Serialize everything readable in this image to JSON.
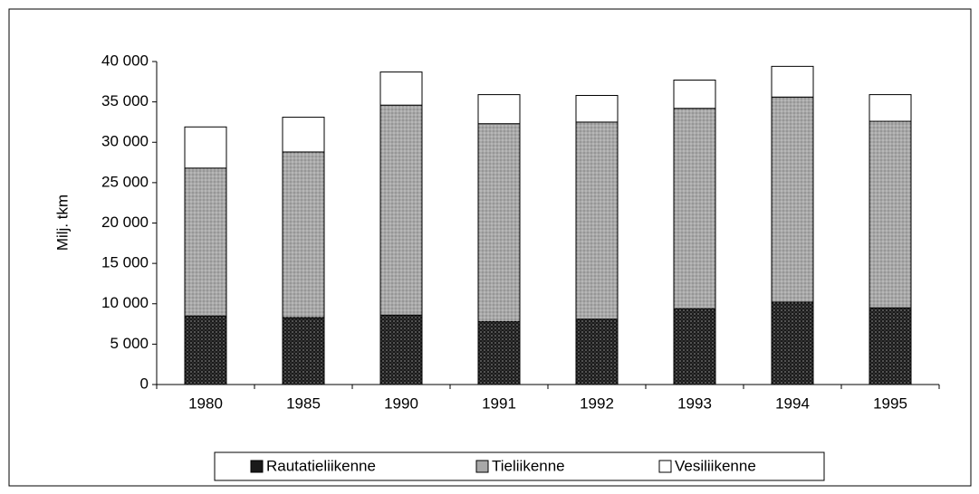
{
  "chart_data": {
    "type": "stacked_bar",
    "y_label": "Milj. tkm",
    "categories": [
      "1980",
      "1985",
      "1990",
      "1991",
      "1992",
      "1993",
      "1994",
      "1995"
    ],
    "series": [
      {
        "name": "Rautatieliikenne",
        "color": "#1a1a1a",
        "values": [
          8500,
          8300,
          8600,
          7800,
          8100,
          9400,
          10200,
          9500
        ]
      },
      {
        "name": "Tieliikenne",
        "color": "#a8a8a8",
        "values": [
          18300,
          20500,
          26000,
          24500,
          24400,
          24800,
          25400,
          23100
        ]
      },
      {
        "name": "Vesiliikenne",
        "color": "#ffffff",
        "values": [
          5100,
          4300,
          4100,
          3600,
          3300,
          3500,
          3800,
          3300
        ]
      }
    ],
    "ylim": [
      0,
      40000
    ],
    "yticks": [
      0,
      {
        "value": 5000,
        "label": "5 000"
      },
      {
        "value": 10000,
        "label": "10 000"
      },
      {
        "value": 15000,
        "label": "15 000"
      },
      {
        "value": 20000,
        "label": "20 000"
      },
      {
        "value": 25000,
        "label": "25 000"
      },
      {
        "value": 30000,
        "label": "30 000"
      },
      {
        "value": 35000,
        "label": "35 000"
      },
      {
        "value": 40000,
        "label": "40 000"
      }
    ],
    "legend": "bottom"
  }
}
